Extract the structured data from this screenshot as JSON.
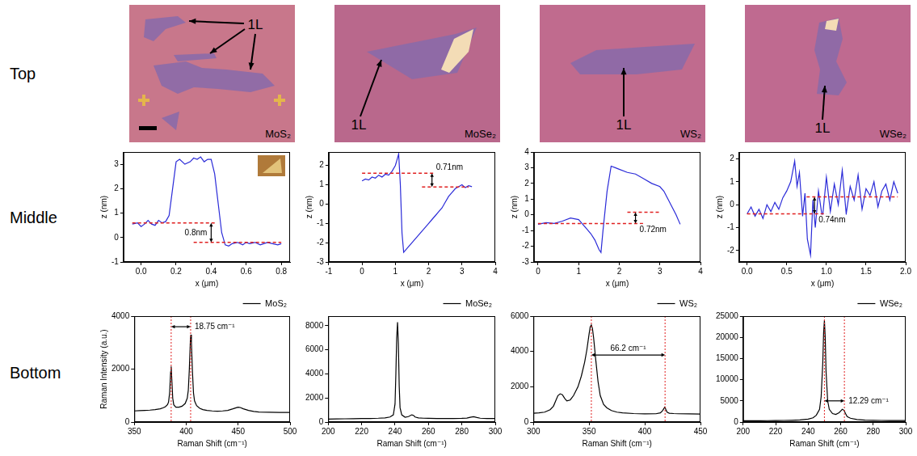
{
  "row_labels": [
    "Top",
    "Middle",
    "Bottom"
  ],
  "images": [
    {
      "label": "MoS₂",
      "annotation": "1L"
    },
    {
      "label": "MoSe₂",
      "annotation": "1L"
    },
    {
      "label": "WS₂",
      "annotation": "1L"
    },
    {
      "label": "WSe₂",
      "annotation": "1L"
    }
  ],
  "chart_data": [
    {
      "type": "line",
      "x_label": "x (μm)",
      "y_label": "z (nm)",
      "x": [
        -0.05,
        -0.02,
        0,
        0.02,
        0.04,
        0.06,
        0.08,
        0.1,
        0.12,
        0.14,
        0.16,
        0.18,
        0.2,
        0.22,
        0.25,
        0.28,
        0.3,
        0.32,
        0.34,
        0.36,
        0.38,
        0.4,
        0.42,
        0.44,
        0.46,
        0.48,
        0.5,
        0.52,
        0.55,
        0.58,
        0.6,
        0.62,
        0.65,
        0.68,
        0.7,
        0.72,
        0.75,
        0.78,
        0.8
      ],
      "series": [
        {
          "color": "#2b2bd8",
          "values": [
            0.55,
            0.6,
            0.45,
            0.55,
            0.7,
            0.55,
            0.5,
            0.7,
            0.6,
            0.65,
            0.9,
            2.0,
            3.1,
            3.2,
            3.0,
            3.1,
            3.25,
            3.2,
            3.3,
            3.1,
            3.2,
            3.2,
            2.6,
            1.4,
            0.2,
            -0.3,
            -0.35,
            -0.25,
            -0.2,
            -0.3,
            -0.2,
            -0.25,
            -0.2,
            -0.3,
            -0.25,
            -0.2,
            -0.25,
            -0.3,
            -0.25
          ]
        }
      ],
      "xlim": [
        -0.1,
        0.85
      ],
      "xticks": [
        {
          "value": 0,
          "label": "0.0"
        },
        0.2,
        0.4,
        0.6,
        0.8
      ],
      "ylim": [
        -1,
        3.5
      ],
      "yticks": [
        -1,
        0,
        1,
        2,
        3
      ],
      "grid": false,
      "reference_lines": [
        {
          "y": 0.6,
          "x": [
            -0.05,
            0.42
          ]
        },
        {
          "y": -0.2,
          "x": [
            0.3,
            0.8
          ]
        }
      ],
      "step": {
        "x": 0.4,
        "y": [
          -0.2,
          0.6
        ],
        "label": "0.8nm"
      }
    },
    {
      "type": "line",
      "x_label": "x (μm)",
      "y_label": "z (nm)",
      "x": [
        0,
        0.1,
        0.2,
        0.3,
        0.4,
        0.5,
        0.6,
        0.7,
        0.8,
        0.9,
        1.0,
        1.05,
        1.1,
        1.15,
        1.2,
        1.25,
        1.3,
        1.4,
        1.5,
        1.6,
        1.7,
        1.8,
        1.9,
        2.0,
        2.1,
        2.2,
        2.3,
        2.4,
        2.5,
        2.6,
        2.7,
        2.8,
        2.9,
        3.0,
        3.1,
        3.2,
        3.3
      ],
      "series": [
        {
          "color": "#2b2bd8",
          "values": [
            1.2,
            1.3,
            1.25,
            1.4,
            1.35,
            1.5,
            1.4,
            1.55,
            1.5,
            1.7,
            2.0,
            2.3,
            2.6,
            1.0,
            -1.5,
            -2.5,
            -2.4,
            -2.2,
            -2.0,
            -1.8,
            -1.6,
            -1.4,
            -1.2,
            -1.0,
            -0.8,
            -0.6,
            -0.4,
            -0.2,
            0.1,
            0.4,
            0.6,
            0.8,
            0.9,
            1.0,
            0.85,
            0.95,
            0.9
          ]
        }
      ],
      "xlim": [
        -1,
        4
      ],
      "xticks": [
        -1,
        0,
        1,
        2,
        3,
        4
      ],
      "ylim": [
        -3,
        2.7
      ],
      "yticks": [
        -3,
        -2,
        -1,
        0,
        1,
        2
      ],
      "grid": false,
      "reference_lines": [
        {
          "y": 1.6,
          "x": [
            0,
            2.2
          ]
        },
        {
          "y": 0.89,
          "x": [
            1.8,
            3.2
          ]
        }
      ],
      "step": {
        "x": 2.1,
        "y": [
          0.89,
          1.6
        ],
        "label": "0.71nm"
      }
    },
    {
      "type": "line",
      "x_label": "x (μm)",
      "y_label": "z (nm)",
      "x": [
        0,
        0.2,
        0.4,
        0.6,
        0.8,
        1.0,
        1.1,
        1.2,
        1.3,
        1.4,
        1.5,
        1.55,
        1.6,
        1.7,
        1.8,
        1.9,
        2.0,
        2.2,
        2.4,
        2.6,
        2.8,
        3.0,
        3.1,
        3.2,
        3.3,
        3.4,
        3.5
      ],
      "series": [
        {
          "color": "#2b2bd8",
          "values": [
            -0.6,
            -0.5,
            -0.55,
            -0.4,
            -0.2,
            -0.3,
            -0.6,
            -0.9,
            -1.2,
            -1.6,
            -2.2,
            -2.4,
            -1.0,
            1.5,
            3.1,
            3.0,
            2.9,
            2.7,
            2.6,
            2.3,
            2.0,
            1.8,
            1.5,
            1.0,
            0.5,
            0.0,
            -0.6
          ]
        }
      ],
      "xlim": [
        -0.1,
        4
      ],
      "xticks": [
        0,
        1,
        2,
        3,
        4
      ],
      "ylim": [
        -3,
        4
      ],
      "yticks": [
        -3,
        -2,
        -1,
        0,
        1,
        2,
        3,
        4
      ],
      "grid": false,
      "reference_lines": [
        {
          "y": -0.55,
          "x": [
            0,
            2.6
          ]
        },
        {
          "y": 0.17,
          "x": [
            2.2,
            3.0
          ]
        }
      ],
      "step": {
        "x": 2.4,
        "y": [
          -0.55,
          0.17
        ],
        "label": "0.72nm"
      }
    },
    {
      "type": "line",
      "x_label": "x (μm)",
      "y_label": "z (nm)",
      "x": [
        0,
        0.05,
        0.1,
        0.15,
        0.2,
        0.25,
        0.3,
        0.35,
        0.4,
        0.45,
        0.5,
        0.55,
        0.6,
        0.63,
        0.66,
        0.7,
        0.73,
        0.76,
        0.8,
        0.83,
        0.86,
        0.9,
        0.95,
        1.0,
        1.05,
        1.1,
        1.15,
        1.2,
        1.25,
        1.3,
        1.35,
        1.4,
        1.45,
        1.5,
        1.55,
        1.6,
        1.65,
        1.7,
        1.75,
        1.8,
        1.85,
        1.9
      ],
      "series": [
        {
          "color": "#2b2bd8",
          "values": [
            -0.4,
            -0.1,
            -0.5,
            -0.2,
            -0.6,
            0.0,
            -0.3,
            0.1,
            -0.2,
            0.3,
            0.6,
            1.0,
            1.9,
            0.8,
            1.4,
            -0.5,
            0.5,
            -1.5,
            -2.2,
            0.2,
            -1.0,
            0.6,
            -0.6,
            1.2,
            -0.3,
            0.9,
            0.0,
            1.5,
            -0.4,
            0.8,
            0.2,
            1.3,
            -0.2,
            0.7,
            0.4,
            1.0,
            -0.1,
            0.6,
            0.9,
            0.2,
            1.0,
            0.5
          ]
        }
      ],
      "xlim": [
        -0.1,
        2.0
      ],
      "xticks": [
        {
          "value": 0,
          "label": "0.0"
        },
        0.5,
        {
          "value": 1,
          "label": "1.0"
        },
        1.5,
        {
          "value": 2,
          "label": "2.0"
        }
      ],
      "ylim": [
        -2.5,
        2.3
      ],
      "yticks": [
        -2,
        -1,
        0,
        1,
        2
      ],
      "grid": false,
      "reference_lines": [
        {
          "y": -0.4,
          "x": [
            0,
            1.0
          ]
        },
        {
          "y": 0.34,
          "x": [
            0.75,
            1.9
          ]
        }
      ],
      "step": {
        "x": 0.85,
        "y": [
          -0.4,
          0.34
        ],
        "label": "0.74nm"
      }
    },
    {
      "type": "line",
      "x_label": "Raman Shift (cm⁻¹)",
      "y_label": "Raman Intensity (a.u.)",
      "x": [
        350,
        355,
        360,
        365,
        370,
        375,
        378,
        380,
        382,
        383,
        384,
        385,
        385.5,
        386,
        387,
        388,
        390,
        393,
        396,
        399,
        401,
        402,
        403,
        404,
        404.5,
        405,
        406,
        407,
        408,
        410,
        413,
        416,
        420,
        425,
        430,
        435,
        440,
        445,
        448,
        450,
        452,
        455,
        460,
        465,
        470,
        480,
        490,
        500
      ],
      "series": [
        {
          "name": "MoS₂",
          "color": "#000000",
          "values": [
            420,
            430,
            440,
            450,
            470,
            500,
            540,
            580,
            660,
            760,
            1100,
            1900,
            2100,
            1700,
            900,
            650,
            560,
            560,
            600,
            700,
            900,
            1200,
            2000,
            3100,
            3300,
            3000,
            1900,
            1100,
            800,
            620,
            520,
            470,
            440,
            420,
            410,
            420,
            440,
            500,
            540,
            560,
            550,
            500,
            440,
            400,
            380,
            370,
            360,
            360
          ]
        }
      ],
      "xlim": [
        350,
        500
      ],
      "xticks": [
        350,
        400,
        450,
        500
      ],
      "ylim": [
        0,
        4000
      ],
      "yticks": [
        0,
        2000,
        4000
      ],
      "grid": false,
      "legend": "upper right",
      "peak_markers": [
        385.5,
        404.25
      ],
      "spacing": {
        "y": 3600,
        "label": "18.75 cm⁻¹"
      }
    },
    {
      "type": "line",
      "x_label": "Raman Shift (cm⁻¹)",
      "x": [
        200,
        205,
        210,
        215,
        220,
        225,
        230,
        234,
        237,
        239,
        240,
        240.5,
        241,
        241.5,
        242,
        242.5,
        243,
        244,
        246,
        248,
        250,
        251,
        252,
        254,
        257,
        260,
        265,
        270,
        275,
        280,
        283,
        285,
        287,
        289,
        291,
        295,
        300
      ],
      "series": [
        {
          "name": "MoSe₂",
          "color": "#000000",
          "values": [
            250,
            260,
            270,
            280,
            290,
            300,
            320,
            350,
            420,
            600,
            1500,
            4000,
            7000,
            8300,
            6500,
            3000,
            1200,
            600,
            400,
            450,
            600,
            560,
            420,
            350,
            320,
            310,
            300,
            300,
            300,
            310,
            330,
            400,
            450,
            380,
            320,
            300,
            300
          ]
        }
      ],
      "xlim": [
        200,
        300
      ],
      "xticks": [
        200,
        220,
        240,
        260,
        280,
        300
      ],
      "ylim": [
        0,
        8800
      ],
      "yticks": [
        0,
        2000,
        4000,
        6000,
        8000
      ],
      "grid": false,
      "legend": "upper right"
    },
    {
      "type": "line",
      "x_label": "Raman Shift (cm⁻¹)",
      "x": [
        300,
        305,
        310,
        315,
        318,
        320,
        322,
        324,
        326,
        328,
        330,
        333,
        336,
        340,
        343,
        346,
        348,
        350,
        351,
        352,
        353,
        354,
        356,
        358,
        360,
        363,
        366,
        370,
        375,
        380,
        390,
        400,
        410,
        414,
        416,
        417,
        418,
        419,
        420,
        422,
        426,
        430,
        440,
        450
      ],
      "series": [
        {
          "name": "WS₂",
          "color": "#000000",
          "values": [
            500,
            520,
            560,
            700,
            900,
            1200,
            1500,
            1600,
            1550,
            1350,
            1200,
            1250,
            1500,
            2000,
            2600,
            3400,
            4100,
            5000,
            5400,
            5500,
            5300,
            4800,
            3500,
            2300,
            1500,
            1000,
            800,
            650,
            560,
            520,
            480,
            460,
            470,
            520,
            650,
            750,
            850,
            700,
            560,
            500,
            480,
            470,
            460,
            450
          ]
        }
      ],
      "xlim": [
        300,
        450
      ],
      "xticks": [
        300,
        350,
        400,
        450
      ],
      "ylim": [
        0,
        6000
      ],
      "yticks": [
        0,
        2000,
        4000,
        6000
      ],
      "grid": false,
      "legend": "upper right",
      "peak_markers": [
        352,
        418.2
      ],
      "spacing": {
        "y": 3800,
        "label": "66.2 cm⁻¹"
      }
    },
    {
      "type": "line",
      "x_label": "Raman Shift (cm⁻¹)",
      "x": [
        200,
        205,
        210,
        215,
        220,
        225,
        230,
        235,
        240,
        243,
        245,
        247,
        248,
        249,
        249.5,
        250,
        250.5,
        251,
        252,
        253,
        255,
        257,
        259,
        260,
        261,
        262,
        263,
        264,
        266,
        270,
        275,
        280,
        285,
        290,
        295,
        300
      ],
      "series": [
        {
          "name": "WSe₂",
          "color": "#000000",
          "values": [
            300,
            300,
            320,
            330,
            350,
            380,
            420,
            500,
            700,
            1000,
            1600,
            3000,
            6000,
            14000,
            21000,
            24000,
            20000,
            12000,
            5000,
            3000,
            2000,
            1800,
            2200,
            2600,
            3000,
            2800,
            2000,
            1300,
            900,
            600,
            450,
            400,
            380,
            360,
            350,
            350
          ]
        }
      ],
      "xlim": [
        200,
        300
      ],
      "xticks": [
        200,
        220,
        240,
        260,
        280,
        300
      ],
      "ylim": [
        0,
        25000
      ],
      "yticks": [
        0,
        5000,
        10000,
        15000,
        20000,
        25000
      ],
      "grid": false,
      "legend": "upper right",
      "peak_markers": [
        250,
        262.29
      ],
      "spacing": {
        "y": 5000,
        "label": "12.29 cm⁻¹"
      }
    }
  ]
}
